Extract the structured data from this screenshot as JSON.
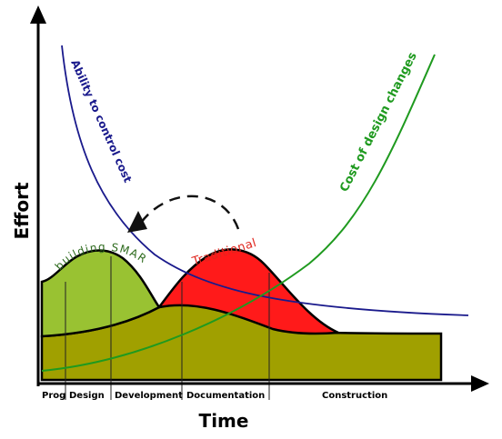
{
  "axes": {
    "y_label": "Effort",
    "x_label": "Time"
  },
  "curves": {
    "ability": {
      "label": "Ability to control cost",
      "color": "#1a1a8c"
    },
    "cost": {
      "label": "Cost of design changes",
      "color": "#1f9a1f"
    },
    "bim": {
      "label": "building SMART",
      "color": "#2e6b1e",
      "fill": "#99c232"
    },
    "traditional": {
      "label": "Traditional",
      "color": "#e0261e",
      "fill": "#ff1a1a"
    },
    "baseline": {
      "fill": "#a0a000"
    }
  },
  "phases": [
    "Prog",
    "Design",
    "Development",
    "Documentation",
    "Construction"
  ]
}
